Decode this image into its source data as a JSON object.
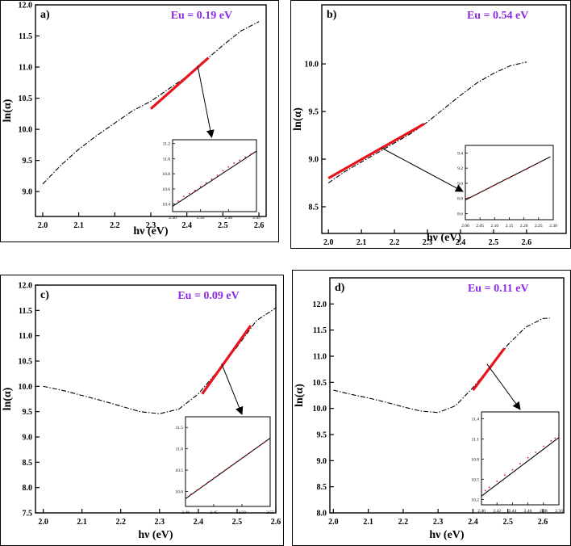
{
  "colors": {
    "fit": "#e8141c",
    "annotation": "#8a2be2",
    "curve": "#000000",
    "inset_points": "#e8141c"
  },
  "chart_data": [
    {
      "type": "line",
      "panel_label": "a)",
      "annotation": "Eu = 0.19 eV",
      "xlabel": "hν (eV)",
      "ylabel": "ln(α)",
      "xlim": [
        1.98,
        2.62
      ],
      "ylim": [
        8.6,
        12.0
      ],
      "xticks": [
        2.0,
        2.1,
        2.2,
        2.3,
        2.4,
        2.5,
        2.6
      ],
      "xtick_labels": [
        "2.0",
        "2.1",
        "2.2",
        "2.3",
        "2.4",
        "2.5",
        "2.6"
      ],
      "yticks": [
        9.0,
        9.5,
        10.0,
        10.5,
        11.0,
        11.5,
        12.0
      ],
      "ytick_labels": [
        "9.0",
        "9.5",
        "10.0",
        "10.5",
        "11.0",
        "11.5",
        "12.0"
      ],
      "grid": false,
      "series": [
        {
          "style": "dash-dot",
          "x": [
            2.0,
            2.05,
            2.1,
            2.15,
            2.2,
            2.25,
            2.3,
            2.35,
            2.4,
            2.45,
            2.5,
            2.55,
            2.6
          ],
          "y": [
            9.12,
            9.42,
            9.68,
            9.9,
            10.1,
            10.3,
            10.45,
            10.65,
            10.85,
            11.1,
            11.35,
            11.58,
            11.73
          ]
        },
        {
          "style": "fit",
          "x": [
            2.3,
            2.46
          ],
          "y": [
            10.33,
            11.15
          ]
        }
      ],
      "inset": {
        "xlim": [
          2.3,
          2.45
        ],
        "ylim": [
          10.3,
          11.25
        ],
        "xticks": [
          2.3,
          2.35,
          2.4,
          2.45
        ],
        "xtick_labels": [
          "2.30",
          "2.35",
          "2.40",
          "2.45"
        ],
        "yticks": [
          10.4,
          10.6,
          10.8,
          11.0,
          11.2
        ],
        "ytick_labels": [
          "10.4",
          "10.6",
          "10.8",
          "11.0",
          "11.2"
        ],
        "line": {
          "x": [
            2.3,
            2.45
          ],
          "y": [
            10.37,
            11.1
          ]
        },
        "points": {
          "x": [
            2.31,
            2.32,
            2.33,
            2.34,
            2.35,
            2.36,
            2.37,
            2.38,
            2.39,
            2.4,
            2.41,
            2.42,
            2.43,
            2.44
          ],
          "y": [
            10.44,
            10.5,
            10.54,
            10.58,
            10.63,
            10.68,
            10.73,
            10.78,
            10.84,
            10.89,
            10.94,
            10.98,
            11.02,
            11.06
          ]
        }
      },
      "arrow": {
        "from": [
          2.43,
          11.02
        ],
        "to_inset": [
          2.37,
          11.25
        ]
      }
    },
    {
      "type": "line",
      "panel_label": "b)",
      "annotation": "Eu = 0.54 eV",
      "xlabel": "hν (eV)",
      "ylabel": "ln(α)",
      "xlim": [
        1.98,
        2.72
      ],
      "ylim": [
        8.22,
        10.62
      ],
      "xticks": [
        2.0,
        2.1,
        2.2,
        2.3,
        2.4,
        2.5,
        2.6
      ],
      "xtick_labels": [
        "2.0",
        "2.1",
        "2.2",
        "2.3",
        "2.4",
        "2.5",
        "2.6"
      ],
      "yticks": [
        8.5,
        9.0,
        9.5,
        10.0
      ],
      "ytick_labels": [
        "8.5",
        "9.0",
        "9.5",
        "10.0"
      ],
      "grid": false,
      "series": [
        {
          "style": "dash-dot",
          "x": [
            2.0,
            2.05,
            2.1,
            2.15,
            2.2,
            2.25,
            2.3,
            2.35,
            2.4,
            2.45,
            2.5,
            2.55,
            2.6
          ],
          "y": [
            8.75,
            8.87,
            8.97,
            9.07,
            9.17,
            9.27,
            9.39,
            9.53,
            9.67,
            9.8,
            9.9,
            9.98,
            10.02
          ]
        },
        {
          "style": "fit",
          "x": [
            2.0,
            2.29
          ],
          "y": [
            8.8,
            9.37
          ]
        }
      ],
      "inset": {
        "xlim": [
          2.0,
          2.3
        ],
        "ylim": [
          8.52,
          9.5
        ],
        "xticks": [
          2.0,
          2.05,
          2.1,
          2.15,
          2.2,
          2.25,
          2.3
        ],
        "xtick_labels": [
          "2.00",
          "2.05",
          "2.10",
          "2.15",
          "2.20",
          "2.25",
          "2.30"
        ],
        "yticks": [
          8.6,
          8.8,
          9.0,
          9.2,
          9.4
        ],
        "ytick_labels": [
          "8.6",
          "8.8",
          "9.0",
          "9.2",
          "9.4"
        ],
        "line": {
          "x": [
            2.0,
            2.29
          ],
          "y": [
            8.78,
            9.35
          ]
        },
        "points": {
          "x": [
            2.01,
            2.03,
            2.05,
            2.07,
            2.09,
            2.11,
            2.13,
            2.15,
            2.17,
            2.19,
            2.21,
            2.23,
            2.25
          ],
          "y": [
            8.81,
            8.84,
            8.88,
            8.92,
            8.96,
            9.0,
            9.04,
            9.07,
            9.11,
            9.15,
            9.19,
            9.23,
            9.27
          ]
        }
      },
      "arrow": {
        "from": [
          2.16,
          9.12
        ],
        "to_inset": [
          2.0,
          8.95
        ]
      }
    },
    {
      "type": "line",
      "panel_label": "c)",
      "annotation": "Eu = 0.09 eV",
      "xlabel": "hν (eV)",
      "ylabel": "ln(α)",
      "xlim": [
        1.98,
        2.6
      ],
      "ylim": [
        7.5,
        12.0
      ],
      "xticks": [
        2.0,
        2.1,
        2.2,
        2.3,
        2.4,
        2.5,
        2.6
      ],
      "xtick_labels": [
        "2.0",
        "2.1",
        "2.2",
        "2.3",
        "2.4",
        "2.5",
        "2.6"
      ],
      "yticks": [
        7.5,
        8.0,
        8.5,
        9.0,
        9.5,
        10.0,
        10.5,
        11.0,
        11.5,
        12.0
      ],
      "ytick_labels": [
        "7.5",
        "8.0",
        "8.5",
        "9.0",
        "9.5",
        "10.0",
        "10.5",
        "11.0",
        "11.5",
        "12.0"
      ],
      "grid": false,
      "series": [
        {
          "style": "dash-dot",
          "x": [
            2.0,
            2.05,
            2.1,
            2.15,
            2.2,
            2.25,
            2.3,
            2.35,
            2.4,
            2.45,
            2.5,
            2.55,
            2.6
          ],
          "y": [
            10.0,
            9.92,
            9.82,
            9.72,
            9.61,
            9.5,
            9.46,
            9.55,
            9.85,
            10.3,
            10.78,
            11.3,
            11.55
          ]
        },
        {
          "style": "fit",
          "x": [
            2.41,
            2.535
          ],
          "y": [
            9.85,
            11.2
          ]
        }
      ],
      "inset": {
        "xlim": [
          2.4,
          2.55
        ],
        "ylim": [
          9.65,
          11.75
        ],
        "xticks": [
          2.4,
          2.45,
          2.5,
          2.55
        ],
        "xtick_labels": [
          "2.40",
          "2.45",
          "2.50",
          "2.55"
        ],
        "yticks": [
          10.0,
          10.5,
          11.0,
          11.5
        ],
        "ytick_labels": [
          "10.0",
          "10.5",
          "11.0",
          "11.5"
        ],
        "line": {
          "x": [
            2.4,
            2.55
          ],
          "y": [
            9.83,
            11.25
          ]
        },
        "points": {
          "x": [
            2.41,
            2.42,
            2.43,
            2.44,
            2.45,
            2.46,
            2.47,
            2.48,
            2.49,
            2.5,
            2.51,
            2.52,
            2.53,
            2.54
          ],
          "y": [
            9.94,
            10.03,
            10.12,
            10.22,
            10.31,
            10.41,
            10.5,
            10.59,
            10.69,
            10.78,
            10.87,
            10.97,
            11.06,
            11.15
          ]
        }
      },
      "arrow": {
        "from": [
          2.46,
          10.45
        ],
        "to_inset": [
          2.5,
          11.75
        ]
      }
    },
    {
      "type": "line",
      "panel_label": "d)",
      "annotation": "Eu = 0.11 eV",
      "xlabel": "hν (eV)",
      "ylabel": "ln(α)",
      "xlim": [
        1.99,
        2.66
      ],
      "ylim": [
        8.0,
        12.5
      ],
      "xticks": [
        2.0,
        2.1,
        2.2,
        2.3,
        2.4,
        2.5,
        2.6
      ],
      "xtick_labels": [
        "2.0",
        "2.1",
        "2.2",
        "2.3",
        "2.4",
        "2.5",
        "2.6"
      ],
      "yticks": [
        8.0,
        8.5,
        9.0,
        9.5,
        10.0,
        10.5,
        11.0,
        11.5,
        12.0
      ],
      "ytick_labels": [
        "8.0",
        "8.5",
        "9.0",
        "9.5",
        "10.0",
        "10.5",
        "11.0",
        "11.5",
        "12.0"
      ],
      "grid": false,
      "series": [
        {
          "style": "dash-dot",
          "x": [
            2.0,
            2.05,
            2.1,
            2.15,
            2.2,
            2.25,
            2.3,
            2.35,
            2.4,
            2.45,
            2.5,
            2.55,
            2.6,
            2.62
          ],
          "y": [
            10.35,
            10.27,
            10.2,
            10.12,
            10.03,
            9.95,
            9.92,
            10.05,
            10.4,
            10.8,
            11.22,
            11.55,
            11.72,
            11.73
          ]
        },
        {
          "style": "fit",
          "x": [
            2.4,
            2.49
          ],
          "y": [
            10.35,
            11.15
          ]
        }
      ],
      "inset": {
        "xlim": [
          2.4,
          2.5
        ],
        "ylim": [
          10.12,
          11.5
        ],
        "xticks": [
          2.4,
          2.42,
          2.44,
          2.46,
          2.48,
          2.5
        ],
        "xtick_labels": [
          "2.40",
          "2.42",
          "2.44",
          "2.46",
          "2.48",
          "2.50"
        ],
        "yticks": [
          10.2,
          10.5,
          10.8,
          11.1,
          11.4
        ],
        "ytick_labels": [
          "10.2",
          "10.5",
          "10.8",
          "11.1",
          "11.4"
        ],
        "line": {
          "x": [
            2.4,
            2.5
          ],
          "y": [
            10.25,
            11.12
          ]
        },
        "points": {
          "x": [
            2.405,
            2.41,
            2.42,
            2.43,
            2.44,
            2.45,
            2.46,
            2.47,
            2.48,
            2.49,
            2.495
          ],
          "y": [
            10.33,
            10.38,
            10.47,
            10.56,
            10.64,
            10.73,
            10.82,
            10.9,
            10.99,
            11.07,
            11.11
          ]
        }
      },
      "arrow": {
        "from": [
          2.44,
          10.85
        ],
        "to_inset": [
          2.45,
          11.5
        ]
      }
    }
  ]
}
